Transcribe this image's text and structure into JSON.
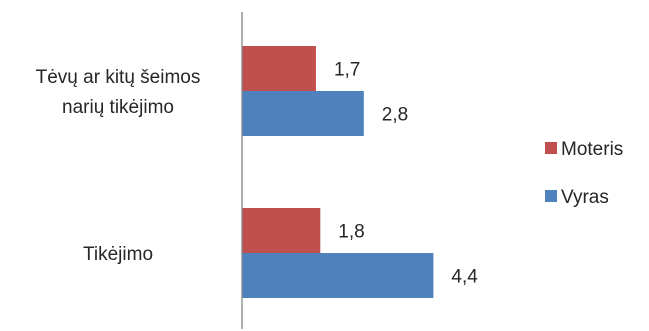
{
  "chart_data": {
    "type": "bar",
    "orientation": "horizontal",
    "categories": [
      [
        "Tėvų ar kitų šeimos",
        "narių tikėjimo"
      ],
      [
        "Tikėjimo"
      ]
    ],
    "series": [
      {
        "name": "Moteris",
        "color": "#c0504d",
        "values": [
          1.7,
          1.8
        ],
        "labels": [
          "1,7",
          "1,8"
        ]
      },
      {
        "name": "Vyras",
        "color": "#4f81bd",
        "values": [
          2.8,
          4.4
        ],
        "labels": [
          "2,8",
          "4,4"
        ]
      }
    ],
    "legend_order": [
      "Moteris",
      "Vyras"
    ],
    "legend_position": "right",
    "xlim": [
      0,
      5
    ],
    "grid": false,
    "axis_color": "#868686"
  }
}
